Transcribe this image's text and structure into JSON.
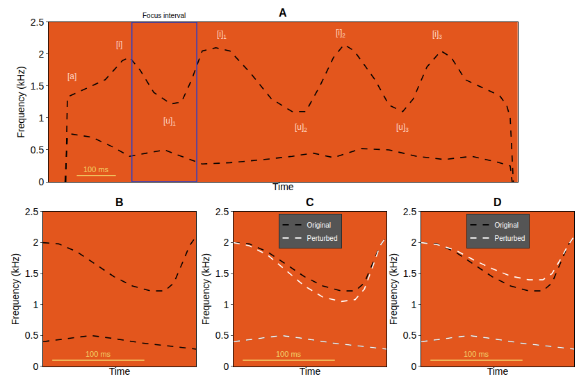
{
  "chart_data": [
    {
      "type": "line",
      "title": "A",
      "x_label": "Time",
      "y_label": "Frequency (kHz)",
      "xlim": [
        0,
        1200
      ],
      "ylim": [
        0,
        2.5
      ],
      "yticks": [
        0,
        0.5,
        1,
        1.5,
        2,
        2.5
      ],
      "tick_labels": "y",
      "grid": false,
      "series": [
        {
          "color": "#000000",
          "line_style": "dash",
          "tracks": [
            {
              "x": [
                44,
                48,
                92,
                145,
                189,
                207,
                234,
                269,
                313,
                340,
                366,
                393,
                428,
                464,
                517,
                570,
                623,
                658,
                694,
                729,
                756,
                782,
                835,
                871,
                906,
                933,
                968,
                1004,
                1030,
                1066,
                1119,
                1154,
                1172,
                1181,
                1189
              ],
              "values": [
                0,
                1.33,
                1.45,
                1.6,
                1.9,
                1.95,
                1.75,
                1.4,
                1.22,
                1.25,
                1.6,
                2.05,
                2.1,
                2.05,
                1.7,
                1.3,
                1.1,
                1.1,
                1.5,
                1.95,
                2.15,
                2.05,
                1.6,
                1.2,
                1.1,
                1.3,
                1.8,
                2.05,
                1.95,
                1.6,
                1.45,
                1.35,
                1.2,
                1.0,
                0
              ]
            },
            {
              "x": [
                42,
                48,
                57,
                110,
                163,
                207,
                251,
                296,
                340,
                393,
                464,
                552,
                623,
                676,
                729,
                800,
                871,
                942,
                1012,
                1083,
                1154,
                1181,
                1186
              ],
              "values": [
                0,
                0.7,
                0.75,
                0.7,
                0.55,
                0.4,
                0.45,
                0.5,
                0.4,
                0.28,
                0.3,
                0.35,
                0.4,
                0.45,
                0.38,
                0.52,
                0.5,
                0.4,
                0.35,
                0.4,
                0.3,
                0.25,
                0
              ]
            }
          ]
        }
      ],
      "annotations": [
        {
          "text": "[a]",
          "x": 60,
          "y": 1.65
        },
        {
          "text": "[i]",
          "x": 180,
          "y": 2.15
        },
        {
          "text": "[u]",
          "sub": "1",
          "x": 310,
          "y": 0.95
        },
        {
          "text": "[i]",
          "sub": "1",
          "x": 443,
          "y": 2.3
        },
        {
          "text": "[u]",
          "sub": "2",
          "x": 645,
          "y": 0.85
        },
        {
          "text": "[i]",
          "sub": "2",
          "x": 747,
          "y": 2.33
        },
        {
          "text": "[u]",
          "sub": "3",
          "x": 906,
          "y": 0.85
        },
        {
          "text": "[i]",
          "sub": "3",
          "x": 995,
          "y": 2.3
        }
      ],
      "focus_interval": {
        "label": "Focus interval",
        "start": 213,
        "end": 379
      },
      "scale_bar": {
        "label": "100 ms",
        "length": 100
      }
    },
    {
      "type": "line",
      "title": "B",
      "x_label": "Time",
      "y_label": "Frequency (kHz)",
      "xlim": [
        213,
        379
      ],
      "ylim": [
        0,
        2.5
      ],
      "yticks": [
        0,
        0.5,
        1,
        1.5,
        2,
        2.5
      ],
      "tick_labels": "y",
      "grid": false,
      "series": [
        {
          "color": "#000000",
          "line_style": "dash",
          "tracks": [
            {
              "x": [
                213,
                230,
                250,
                270,
                290,
                310,
                330,
                345,
                355,
                365,
                372,
                379
              ],
              "values": [
                2.0,
                1.98,
                1.85,
                1.65,
                1.45,
                1.3,
                1.22,
                1.22,
                1.35,
                1.7,
                1.95,
                2.1
              ]
            },
            {
              "x": [
                213,
                240,
                265,
                290,
                320,
                350,
                379
              ],
              "values": [
                0.4,
                0.45,
                0.5,
                0.45,
                0.38,
                0.33,
                0.28
              ]
            }
          ]
        }
      ],
      "scale_bar": {
        "label": "100 ms",
        "length": 100
      }
    },
    {
      "type": "line",
      "title": "C",
      "x_label": "Time",
      "y_label": "Frequency (kHz)",
      "xlim": [
        213,
        379
      ],
      "ylim": [
        0,
        2.5
      ],
      "yticks": [
        0,
        0.5,
        1,
        1.5,
        2,
        2.5
      ],
      "tick_labels": "y",
      "grid": false,
      "legend": "upper center",
      "series": [
        {
          "name": "Original",
          "color": "#000000",
          "line_style": "dash",
          "tracks": [
            {
              "x": [
                213,
                230,
                250,
                270,
                290,
                310,
                330,
                345,
                355,
                365,
                372,
                379
              ],
              "values": [
                2.0,
                1.98,
                1.85,
                1.65,
                1.45,
                1.3,
                1.22,
                1.22,
                1.35,
                1.7,
                1.95,
                2.1
              ]
            },
            {
              "x": [
                213,
                240,
                265,
                290,
                320,
                350,
                379
              ],
              "values": [
                0.4,
                0.45,
                0.5,
                0.45,
                0.38,
                0.33,
                0.28
              ]
            }
          ]
        },
        {
          "name": "Perturbed",
          "color": "#ffffff",
          "line_style": "dash",
          "tracks": [
            {
              "x": [
                213,
                230,
                250,
                270,
                290,
                310,
                330,
                345,
                355,
                365,
                372,
                379
              ],
              "values": [
                2.0,
                1.95,
                1.8,
                1.55,
                1.3,
                1.12,
                1.05,
                1.08,
                1.25,
                1.65,
                1.95,
                2.1
              ]
            },
            {
              "x": [
                213,
                240,
                265,
                290,
                320,
                350,
                379
              ],
              "values": [
                0.4,
                0.45,
                0.5,
                0.45,
                0.38,
                0.33,
                0.28
              ]
            }
          ]
        }
      ],
      "scale_bar": {
        "label": "100 ms",
        "length": 100
      }
    },
    {
      "type": "line",
      "title": "D",
      "x_label": "Time",
      "y_label": "Frequency (kHz)",
      "xlim": [
        213,
        379
      ],
      "ylim": [
        0,
        2.5
      ],
      "yticks": [
        0,
        0.5,
        1,
        1.5,
        2,
        2.5
      ],
      "tick_labels": "y",
      "grid": false,
      "legend": "upper center",
      "series": [
        {
          "name": "Original",
          "color": "#000000",
          "line_style": "dash",
          "tracks": [
            {
              "x": [
                213,
                230,
                250,
                270,
                290,
                310,
                330,
                345,
                355,
                365,
                372,
                379
              ],
              "values": [
                2.0,
                1.98,
                1.85,
                1.65,
                1.45,
                1.3,
                1.22,
                1.22,
                1.35,
                1.7,
                1.95,
                2.1
              ]
            },
            {
              "x": [
                213,
                240,
                265,
                290,
                320,
                350,
                379
              ],
              "values": [
                0.4,
                0.45,
                0.5,
                0.45,
                0.38,
                0.33,
                0.28
              ]
            }
          ]
        },
        {
          "name": "Perturbed",
          "color": "#ffffff",
          "line_style": "dash",
          "tracks": [
            {
              "x": [
                213,
                230,
                250,
                270,
                290,
                310,
                330,
                345,
                355,
                365,
                372,
                379
              ],
              "values": [
                2.0,
                1.97,
                1.88,
                1.72,
                1.58,
                1.46,
                1.4,
                1.4,
                1.5,
                1.75,
                1.95,
                2.1
              ]
            },
            {
              "x": [
                213,
                240,
                265,
                290,
                320,
                350,
                379
              ],
              "values": [
                0.4,
                0.45,
                0.5,
                0.45,
                0.38,
                0.33,
                0.28
              ]
            }
          ]
        }
      ],
      "scale_bar": {
        "label": "100 ms",
        "length": 100
      }
    }
  ]
}
